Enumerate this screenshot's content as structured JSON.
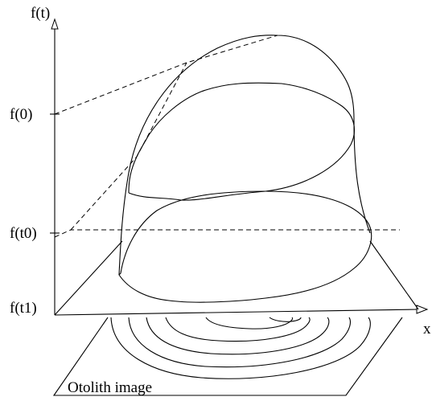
{
  "labels": {
    "y_axis": "f(t)",
    "x_axis": "x",
    "f0": "f(0)",
    "ft0": "f(t0)",
    "ft1": "f(t1)",
    "plane": "Otolith image"
  }
}
